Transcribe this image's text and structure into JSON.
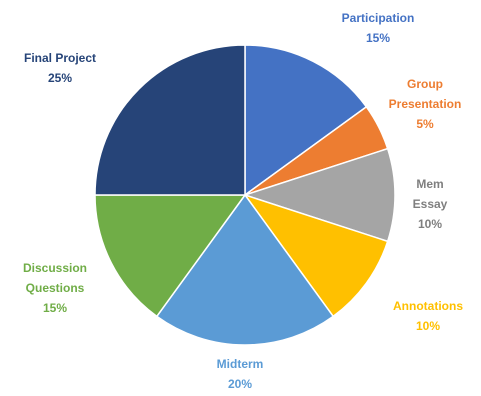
{
  "chart_data": {
    "type": "pie",
    "title": "",
    "slices": [
      {
        "label": "Participation",
        "value": 15,
        "value_label": "15%",
        "color": "#4472C4"
      },
      {
        "label": "Group Presentation",
        "value": 5,
        "value_label": "5%",
        "color": "#ED7D31"
      },
      {
        "label": "Mem Essay",
        "value": 10,
        "value_label": "10%",
        "color": "#A5A5A5"
      },
      {
        "label": "Annotations",
        "value": 10,
        "value_label": "10%",
        "color": "#FFC000"
      },
      {
        "label": "Midterm",
        "value": 20,
        "value_label": "20%",
        "color": "#5B9BD5"
      },
      {
        "label": "Discussion Questions",
        "value": 15,
        "value_label": "15%",
        "color": "#70AD47"
      },
      {
        "label": "Final Project",
        "value": 25,
        "value_label": "25%",
        "color": "#264478"
      }
    ],
    "start_angle_deg": 0,
    "direction": "clockwise",
    "legend": "none",
    "data_labels": "outside, category name and percentage"
  }
}
